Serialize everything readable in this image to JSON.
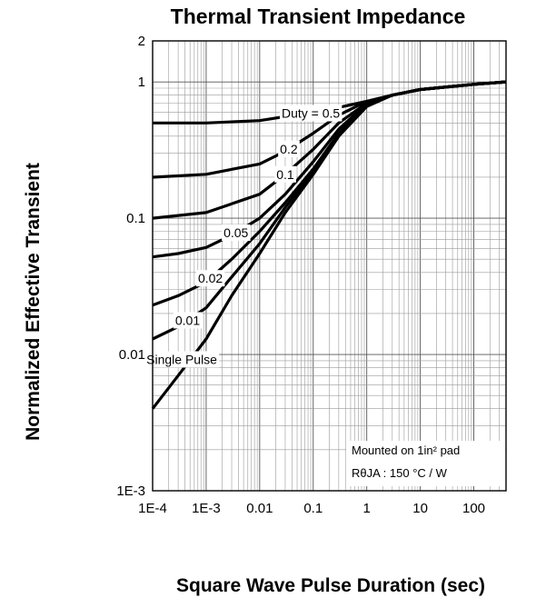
{
  "chart_data": {
    "type": "line",
    "title": "Thermal Transient Impedance",
    "xlabel": "Square Wave Pulse Duration (sec)",
    "ylabel": "Normalized Effective Transient",
    "x_scale": "log",
    "y_scale": "log",
    "xlim": [
      0.0001,
      400
    ],
    "ylim": [
      0.001,
      2
    ],
    "x_ticks": [
      0.0001,
      0.001,
      0.01,
      0.1,
      1,
      10,
      100
    ],
    "x_tick_labels": [
      "1E-4",
      "1E-3",
      "0.01",
      "0.1",
      "1",
      "10",
      "100"
    ],
    "y_ticks": [
      0.001,
      0.01,
      0.1,
      1,
      2
    ],
    "y_tick_labels": [
      "1E-3",
      "0.01",
      "0.1",
      "1",
      "2"
    ],
    "grid": true,
    "annotation_lines": [
      "Mounted on 1in² pad",
      "RθJA : 150 °C / W"
    ],
    "series": [
      {
        "label": "Duty =  0.5",
        "x": [
          0.0001,
          0.001,
          0.01,
          0.1,
          0.3,
          1,
          3,
          10,
          100,
          400
        ],
        "y": [
          0.5,
          0.5,
          0.52,
          0.6,
          0.65,
          0.72,
          0.8,
          0.88,
          0.96,
          1.0
        ]
      },
      {
        "label": "0.2",
        "x": [
          0.0001,
          0.001,
          0.01,
          0.03,
          0.1,
          0.3,
          1,
          3,
          10,
          100,
          400
        ],
        "y": [
          0.2,
          0.21,
          0.25,
          0.31,
          0.42,
          0.57,
          0.72,
          0.8,
          0.88,
          0.96,
          1.0
        ]
      },
      {
        "label": "0.1",
        "x": [
          0.0001,
          0.001,
          0.01,
          0.03,
          0.1,
          0.3,
          1,
          3,
          10,
          100,
          400
        ],
        "y": [
          0.1,
          0.11,
          0.15,
          0.21,
          0.32,
          0.5,
          0.7,
          0.8,
          0.88,
          0.96,
          1.0
        ]
      },
      {
        "label": "0.05",
        "x": [
          0.0001,
          0.0003,
          0.001,
          0.003,
          0.01,
          0.03,
          0.1,
          0.3,
          1,
          3,
          10,
          100,
          400
        ],
        "y": [
          0.052,
          0.055,
          0.061,
          0.075,
          0.1,
          0.15,
          0.26,
          0.45,
          0.69,
          0.8,
          0.88,
          0.96,
          1.0
        ]
      },
      {
        "label": "0.02",
        "x": [
          0.0001,
          0.0003,
          0.001,
          0.003,
          0.01,
          0.03,
          0.1,
          0.3,
          1,
          3,
          10,
          100,
          400
        ],
        "y": [
          0.023,
          0.027,
          0.034,
          0.05,
          0.08,
          0.13,
          0.23,
          0.42,
          0.68,
          0.8,
          0.88,
          0.96,
          1.0
        ]
      },
      {
        "label": "0.01",
        "x": [
          0.0001,
          0.0003,
          0.001,
          0.003,
          0.01,
          0.03,
          0.1,
          0.3,
          1,
          3,
          10,
          100,
          400
        ],
        "y": [
          0.013,
          0.016,
          0.022,
          0.037,
          0.065,
          0.12,
          0.22,
          0.41,
          0.67,
          0.8,
          0.88,
          0.96,
          1.0
        ]
      },
      {
        "label": "Single Pulse",
        "x": [
          0.0001,
          0.0003,
          0.001,
          0.003,
          0.01,
          0.03,
          0.1,
          0.3,
          1,
          3,
          10,
          100,
          400
        ],
        "y": [
          0.004,
          0.007,
          0.013,
          0.027,
          0.055,
          0.11,
          0.21,
          0.4,
          0.66,
          0.8,
          0.88,
          0.96,
          1.0
        ]
      }
    ]
  }
}
